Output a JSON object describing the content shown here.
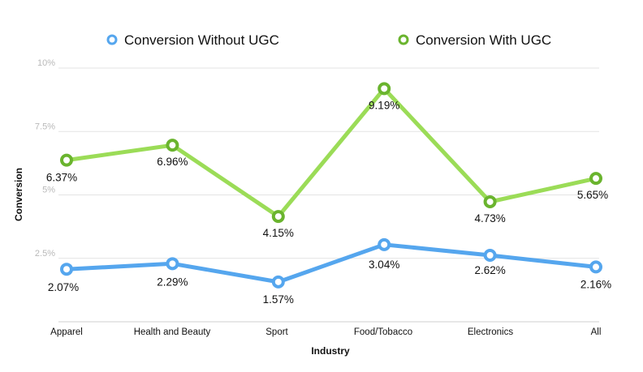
{
  "chart_data": {
    "type": "line",
    "title": "",
    "xlabel": "Industry",
    "ylabel": "Conversion",
    "categories": [
      "Apparel",
      "Health and Beauty",
      "Sport",
      "Food/Tobacco",
      "Electronics",
      "All"
    ],
    "yticks": [
      "2.5%",
      "5%",
      "7.5%",
      "10%"
    ],
    "ylim": [
      0,
      10
    ],
    "grid": true,
    "legend_position": "top",
    "series": [
      {
        "name": "Conversion Without UGC",
        "color": "#55a6ee",
        "values": [
          2.07,
          2.29,
          1.57,
          3.04,
          2.62,
          2.16
        ],
        "labels": [
          "2.07%",
          "2.29%",
          "1.57%",
          "3.04%",
          "2.62%",
          "2.16%"
        ]
      },
      {
        "name": "Conversion With UGC",
        "color": "#9bdc57",
        "marker_color": "#6ab42e",
        "values": [
          6.37,
          6.96,
          4.15,
          9.19,
          4.73,
          5.65
        ],
        "labels": [
          "6.37%",
          "6.96%",
          "4.15%",
          "9.19%",
          "4.73%",
          "5.65%"
        ]
      }
    ]
  }
}
